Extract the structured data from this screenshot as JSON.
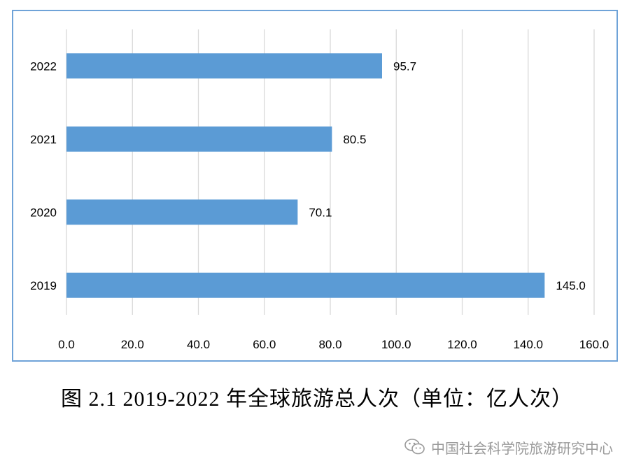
{
  "chart_data": {
    "type": "bar",
    "orientation": "horizontal",
    "categories": [
      "2022",
      "2021",
      "2020",
      "2019"
    ],
    "values": [
      95.7,
      80.5,
      70.1,
      145.0
    ],
    "data_labels": [
      "95.7",
      "80.5",
      "70.1",
      "145.0"
    ],
    "x_ticks": [
      "0.0",
      "20.0",
      "40.0",
      "60.0",
      "80.0",
      "100.0",
      "120.0",
      "140.0",
      "160.0"
    ],
    "xlim": [
      0,
      160
    ],
    "grid": "vertical",
    "legend": "none",
    "bar_color": "#5b9bd5",
    "frame_color": "#6fa3d8"
  },
  "caption": "图 2.1 2019-2022 年全球旅游总人次（单位：亿人次）",
  "watermark": {
    "text": "中国社会科学院旅游研究中心",
    "icon": "wechat-icon"
  }
}
